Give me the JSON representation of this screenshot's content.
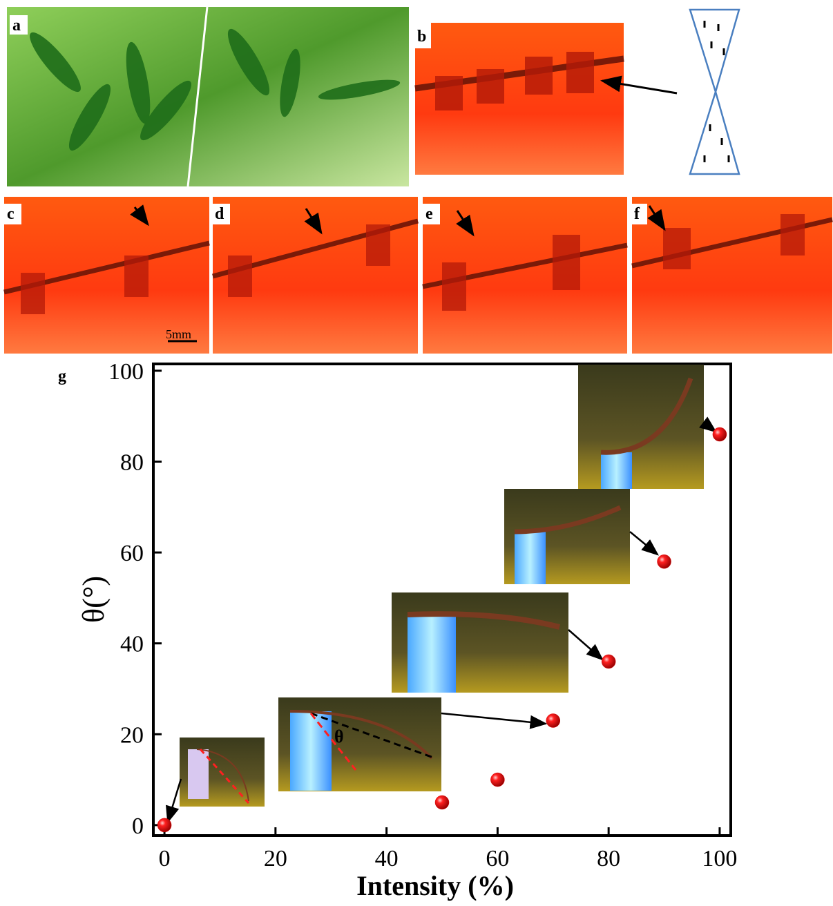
{
  "panel_labels": [
    "a",
    "b",
    "c",
    "d",
    "e",
    "f",
    "g"
  ],
  "scale_bar": "5mm",
  "chart_data": {
    "type": "scatter",
    "x_label": "Intensity (%)",
    "y_label": "θ(°)",
    "annotation": "θ",
    "x": [
      0,
      50,
      60,
      70,
      80,
      90,
      100
    ],
    "values": [
      0,
      5,
      10,
      23,
      36,
      58,
      86
    ],
    "color": "#e00000",
    "xlim": [
      -2,
      102
    ],
    "ylim": [
      -2.3,
      101.5
    ],
    "xticks": [
      0,
      20,
      40,
      60,
      80,
      100
    ],
    "yticks": [
      0,
      20,
      40,
      60,
      80,
      100
    ]
  }
}
